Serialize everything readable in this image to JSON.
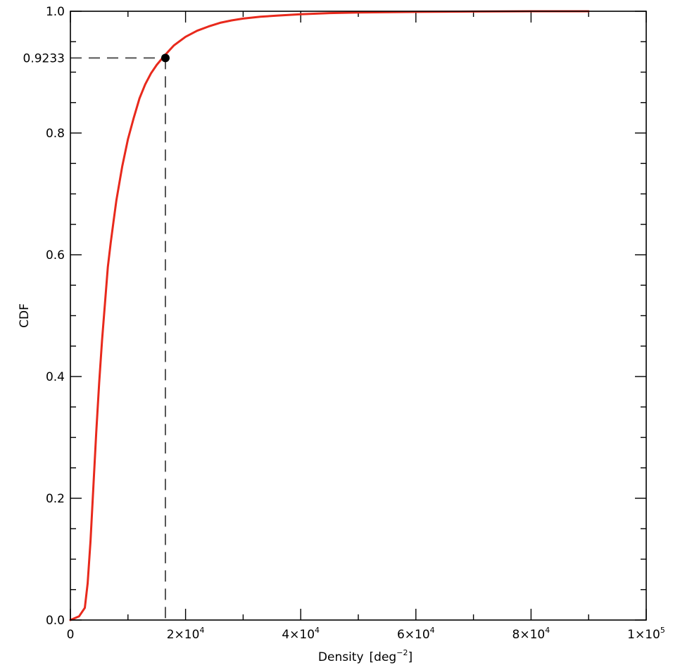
{
  "chart_data": {
    "type": "line",
    "title": "",
    "xlabel": "Density",
    "xlabel_unit_base": "[deg",
    "xlabel_unit_exp": "−2",
    "xlabel_unit_close": "]",
    "ylabel": "CDF",
    "xlim": [
      0,
      100000
    ],
    "ylim": [
      0,
      1.0
    ],
    "grid": false,
    "x_ticks": [
      {
        "value": 0,
        "mantissa": "0",
        "exp": ""
      },
      {
        "value": 20000,
        "mantissa": "2×10",
        "exp": "4"
      },
      {
        "value": 40000,
        "mantissa": "4×10",
        "exp": "4"
      },
      {
        "value": 60000,
        "mantissa": "6×10",
        "exp": "4"
      },
      {
        "value": 80000,
        "mantissa": "8×10",
        "exp": "4"
      },
      {
        "value": 100000,
        "mantissa": "1×10",
        "exp": "5"
      }
    ],
    "y_ticks": [
      {
        "value": 0.0,
        "label": "0.0"
      },
      {
        "value": 0.2,
        "label": "0.2"
      },
      {
        "value": 0.4,
        "label": "0.4"
      },
      {
        "value": 0.6,
        "label": "0.6"
      },
      {
        "value": 0.8,
        "label": "0.8"
      },
      {
        "value": 1.0,
        "label": "1.0"
      }
    ],
    "series": [
      {
        "color": "#e8291c",
        "x": [
          0,
          1500,
          2500,
          3000,
          3500,
          4000,
          4500,
          5000,
          5500,
          6000,
          6500,
          7000,
          7500,
          8000,
          9000,
          10000,
          11000,
          12000,
          13000,
          14000,
          15000,
          16000,
          17000,
          18000,
          20000,
          22000,
          24000,
          26000,
          28000,
          30000,
          33000,
          36000,
          40000,
          45000,
          50000,
          60000,
          70000,
          80000,
          90000
        ],
        "y": [
          0.0,
          0.006,
          0.02,
          0.06,
          0.13,
          0.22,
          0.31,
          0.39,
          0.46,
          0.52,
          0.58,
          0.62,
          0.655,
          0.69,
          0.745,
          0.79,
          0.825,
          0.857,
          0.88,
          0.898,
          0.912,
          0.9233,
          0.934,
          0.944,
          0.958,
          0.968,
          0.975,
          0.981,
          0.985,
          0.988,
          0.991,
          0.993,
          0.995,
          0.997,
          0.998,
          0.999,
          0.9995,
          1.0,
          1.0
        ]
      }
    ],
    "marker": {
      "x": 16500,
      "y": 0.9233,
      "label": "0.9233"
    },
    "colors": {
      "curve": "#e8291c",
      "marker": "#000000",
      "guides": "#555555",
      "axes": "#000000"
    }
  }
}
